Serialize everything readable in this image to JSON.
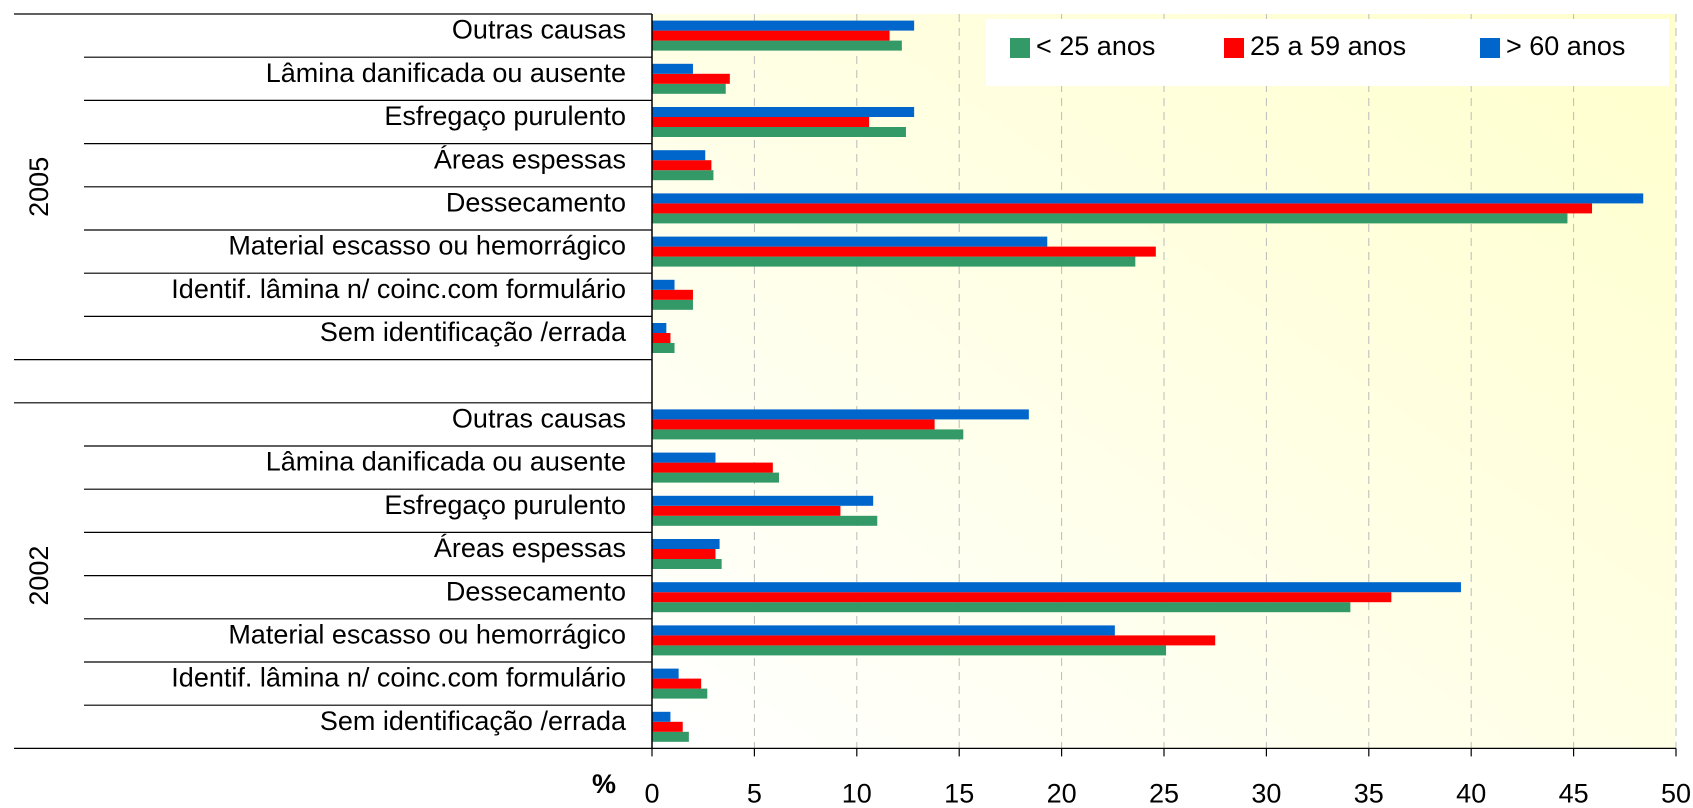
{
  "chart_data": {
    "type": "bar",
    "orientation": "horizontal",
    "groups": [
      "2005",
      "2002"
    ],
    "categories": [
      "Outras causas",
      "Lâmina danificada ou ausente",
      "Esfregaço purulento",
      "Áreas espessas",
      "Dessecamento",
      "Material escasso ou hemorrágico",
      "Identif. lâmina n/ coinc.com formulário",
      "Sem identificação /errada",
      "Outras causas",
      "Lâmina danificada ou ausente",
      "Esfregaço purulento",
      "Áreas espessas",
      "Dessecamento",
      "Material escasso ou hemorrágico",
      "Identif. lâmina n/ coinc.com formulário",
      "Sem identificação /errada"
    ],
    "series": [
      {
        "name": "< 25 anos",
        "color": "#339966",
        "values": [
          12.2,
          3.6,
          12.4,
          3.0,
          44.7,
          23.6,
          2.0,
          1.1,
          15.2,
          6.2,
          11.0,
          3.4,
          34.1,
          25.1,
          2.7,
          1.8
        ]
      },
      {
        "name": "25 a 59 anos",
        "color": "#ff0000",
        "values": [
          11.6,
          3.8,
          10.6,
          2.9,
          45.9,
          24.6,
          2.0,
          0.9,
          13.8,
          5.9,
          9.2,
          3.1,
          36.1,
          27.5,
          2.4,
          1.5
        ]
      },
      {
        "name": "> 60 anos",
        "color": "#0066cc",
        "values": [
          12.8,
          2.0,
          12.8,
          2.6,
          48.4,
          19.3,
          1.1,
          0.7,
          18.4,
          3.1,
          10.8,
          3.3,
          39.5,
          22.6,
          1.3,
          0.9
        ]
      }
    ],
    "x_label": "%",
    "xlim": [
      0,
      50
    ],
    "xticks": [
      0,
      5,
      10,
      15,
      20,
      25,
      30,
      35,
      40,
      45,
      50
    ],
    "grid": true,
    "legend": "top-right"
  }
}
